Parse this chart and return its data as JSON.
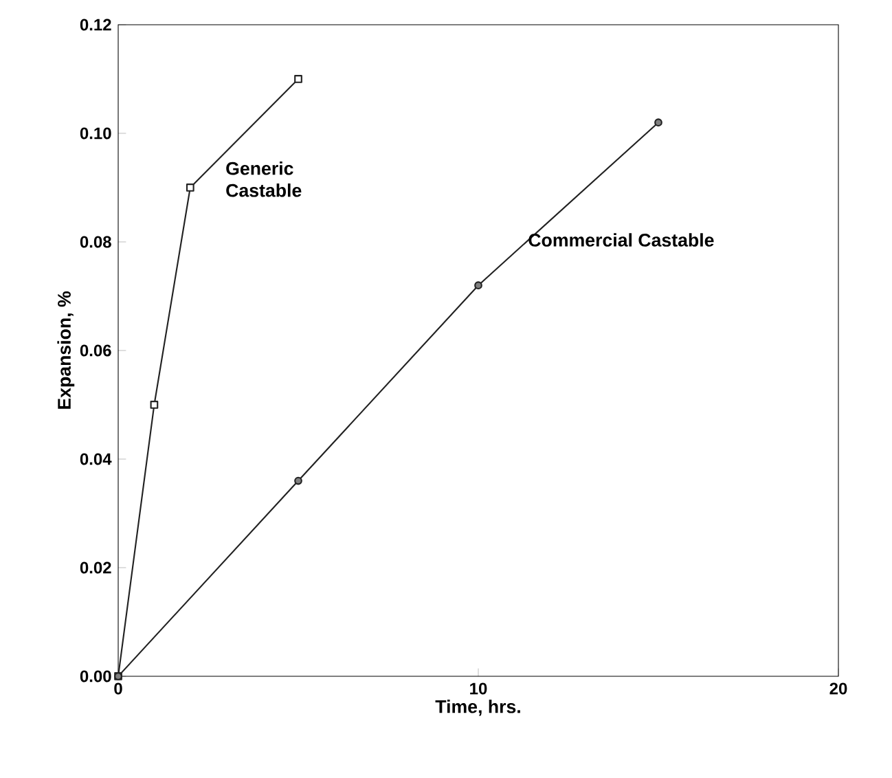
{
  "chart_data": {
    "type": "line",
    "xlabel": "Time, hrs.",
    "ylabel": "Expansion, %",
    "xlim": [
      0,
      20
    ],
    "ylim": [
      0,
      0.12
    ],
    "xticks": [
      0,
      10,
      20
    ],
    "yticks": [
      {
        "value": 0,
        "label": "0.00"
      },
      {
        "value": 0.02,
        "label": "0.02"
      },
      {
        "value": 0.04,
        "label": "0.04"
      },
      {
        "value": 0.06,
        "label": "0.06"
      },
      {
        "value": 0.08,
        "label": "0.08"
      },
      {
        "value": 0.1,
        "label": "0.10"
      },
      {
        "value": 0.12,
        "label": "0.12"
      }
    ],
    "grid": false,
    "line_style": "solid",
    "series": [
      {
        "name": "Generic Castable",
        "color": "#222222",
        "marker": "square",
        "x": [
          0,
          1,
          2,
          5
        ],
        "values": [
          0,
          0.05,
          0.09,
          0.11
        ]
      },
      {
        "name": "Commercial  Castable",
        "color": "#222222",
        "marker": "circle",
        "x": [
          0,
          5,
          10,
          15
        ],
        "values": [
          0,
          0.036,
          0.072,
          0.102
        ]
      }
    ]
  }
}
